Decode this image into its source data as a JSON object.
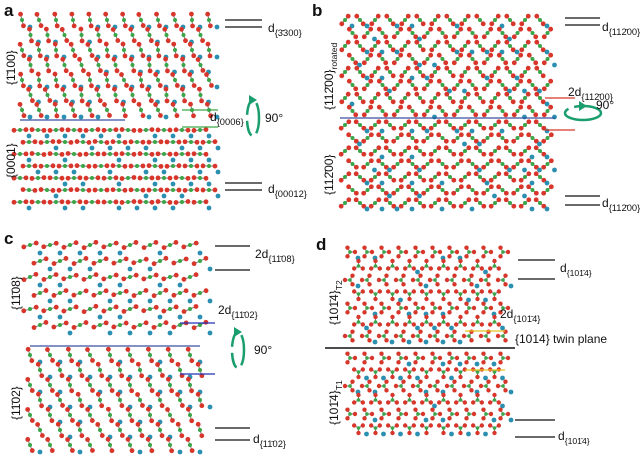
{
  "a": {
    "letter": "a",
    "top_plane": "{1̄100}",
    "bottom_plane": "{0001}",
    "d_top": {
      "d": "d",
      "sub": "{3̄300}"
    },
    "d_mid": {
      "d": "d",
      "sub": "{0006}"
    },
    "rotation": "90°",
    "d_bottom": {
      "d": "d",
      "sub": "{00012}"
    }
  },
  "b": {
    "letter": "b",
    "top_plane": {
      "main": "{112̄00}",
      "sub": "rotated"
    },
    "bottom_plane": "{112̄00}",
    "d_top": {
      "d": "d",
      "sub": "{112̄00}"
    },
    "d_mid": {
      "d": "2d",
      "sub": "{112̄00}"
    },
    "rotation": "90°",
    "d_bottom": {
      "d": "d",
      "sub": "{112̄00}"
    }
  },
  "c": {
    "letter": "c",
    "top_plane": "{11̄08}",
    "bottom_plane": "{11̄02}",
    "d_top": {
      "d": "2d",
      "sub": "{11̄08}"
    },
    "d_mid": {
      "d": "2d",
      "sub": "{11̄02}"
    },
    "rotation": "90°",
    "d_bottom": {
      "d": "d",
      "sub": "{11̄02}"
    }
  },
  "d": {
    "letter": "d",
    "top_plane": {
      "main": "{101̄4}",
      "sub": "T2"
    },
    "bottom_plane": {
      "main": "{101̄4}",
      "sub": "T1"
    },
    "d_top": {
      "d": "d",
      "sub": "{101̄4}"
    },
    "d_mid": {
      "d": "2d",
      "sub": "{101̄4}"
    },
    "twin_plane": "{1014} twin plane",
    "d_bottom": {
      "d": "d",
      "sub": "{101̄4}"
    }
  }
}
